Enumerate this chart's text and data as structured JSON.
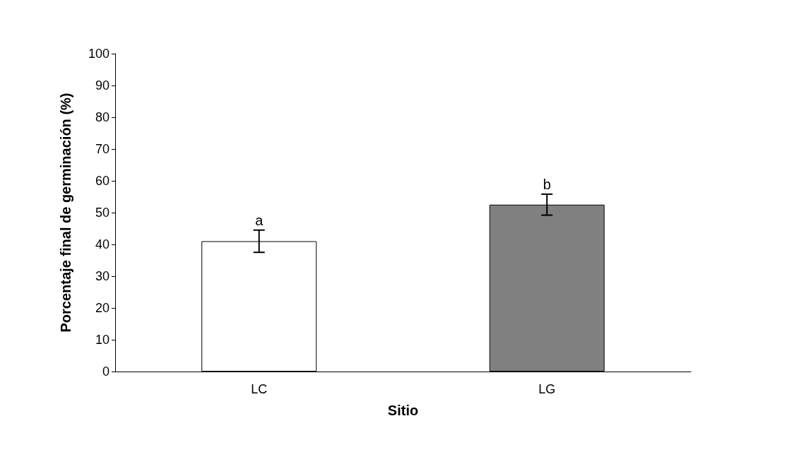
{
  "chart_data": {
    "type": "bar",
    "xlabel": "Sitio",
    "ylabel": "Porcentaje final de germinación (%)",
    "categories": [
      "LC",
      "LG"
    ],
    "values": [
      41,
      52.5
    ],
    "errors": [
      3.5,
      3.3
    ],
    "colors": [
      "#ffffff",
      "#808080"
    ],
    "ylim": [
      0,
      100
    ],
    "yticks": [
      0,
      10,
      20,
      30,
      40,
      50,
      60,
      70,
      80,
      90,
      100
    ],
    "grid": false,
    "annotations": [
      {
        "text": "a",
        "x": "LC",
        "y": 44.5
      },
      {
        "text": "b",
        "x": "LG",
        "y": 55.8
      }
    ]
  }
}
